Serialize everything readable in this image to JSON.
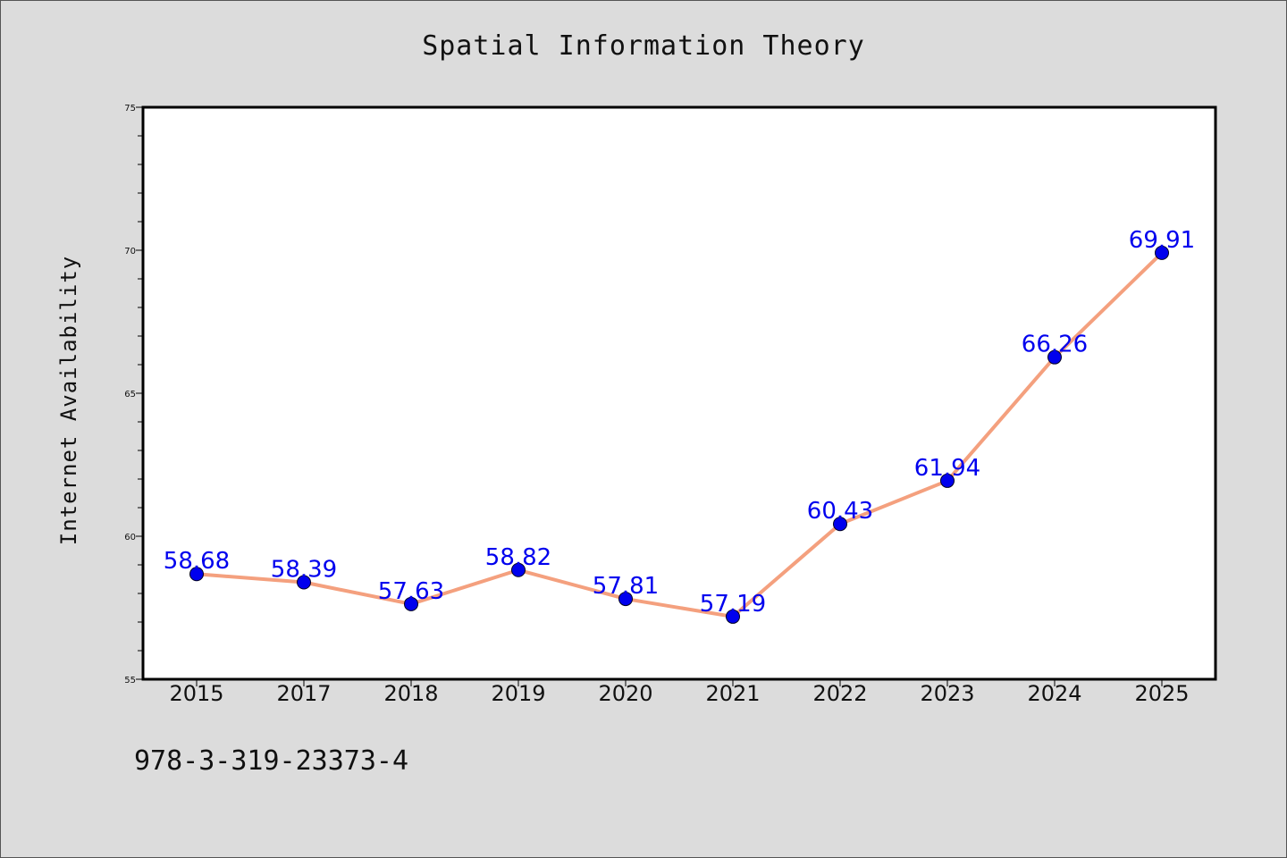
{
  "chart_data": {
    "type": "line",
    "title": "Spatial Information Theory",
    "xlabel": "",
    "ylabel": "Internet Availability",
    "categories": [
      "2015",
      "2017",
      "2018",
      "2019",
      "2020",
      "2021",
      "2022",
      "2023",
      "2024",
      "2025"
    ],
    "series": [
      {
        "values": [
          58.68,
          58.39,
          57.63,
          58.82,
          57.81,
          57.19,
          60.43,
          61.94,
          66.26,
          69.91
        ],
        "labels": [
          "58.68",
          "58.39",
          "57.63",
          "58.82",
          "57.81",
          "57.19",
          "60.43",
          "61.94",
          "66.26",
          "69.91"
        ]
      }
    ],
    "ylim": [
      55,
      75
    ],
    "yticks": [
      "55",
      "60",
      "65",
      "70",
      "75"
    ],
    "grid": false,
    "colors": {
      "line": "#f4a07e",
      "marker": "#0000ee",
      "label": "#0000ee"
    }
  },
  "footer": {
    "isbn": "978-3-319-23373-4"
  }
}
